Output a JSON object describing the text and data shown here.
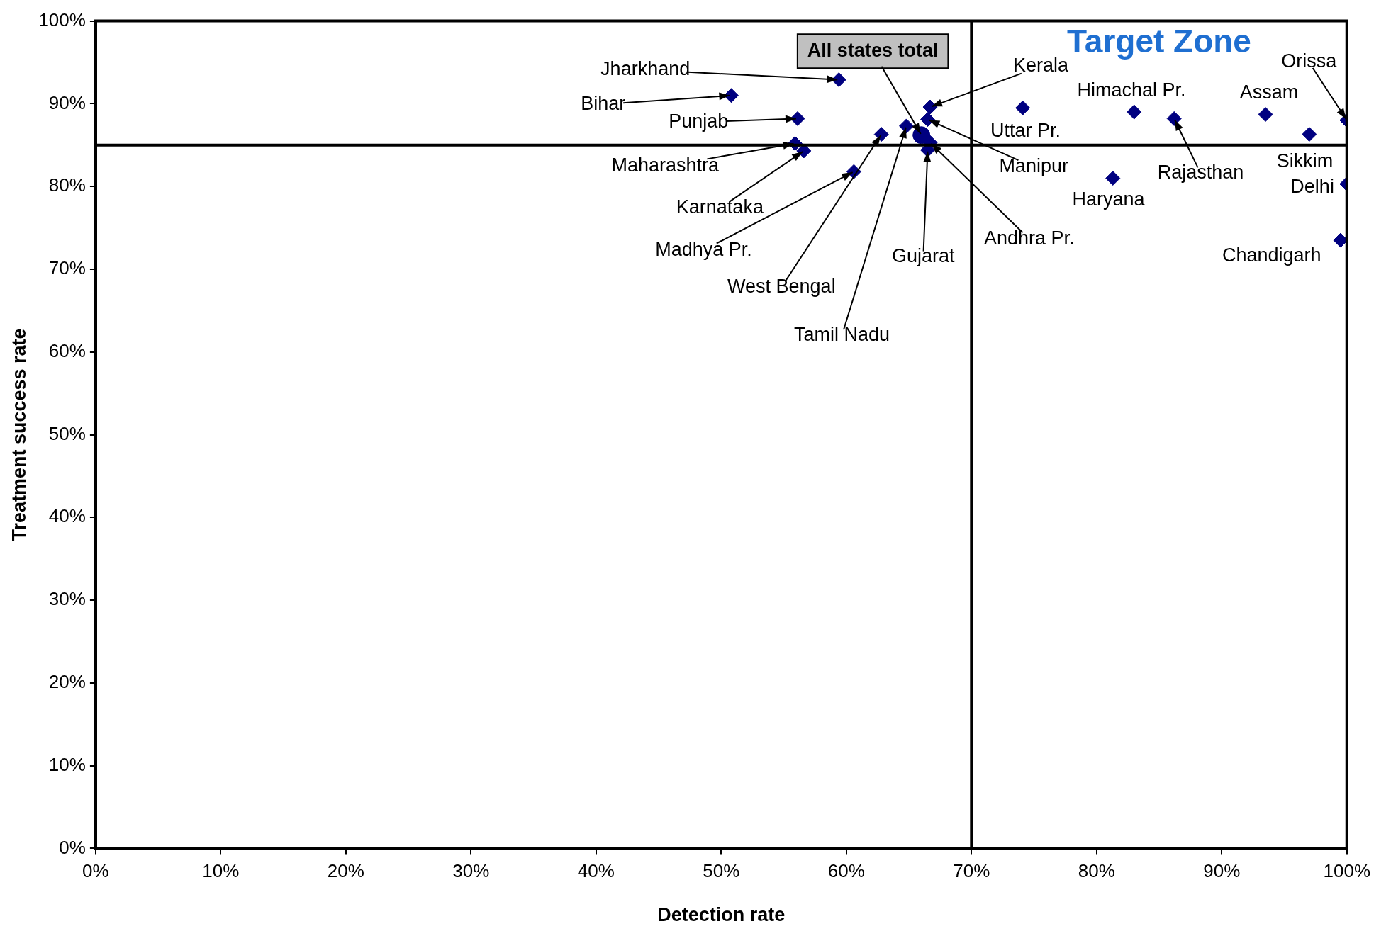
{
  "chart_data": {
    "type": "scatter",
    "xlabel": "Detection rate",
    "ylabel": "Treatment success rate",
    "xlim": [
      0,
      100
    ],
    "ylim": [
      0,
      100
    ],
    "xticks": [
      {
        "value": 0,
        "label": "0%"
      },
      {
        "value": 10,
        "label": "10%"
      },
      {
        "value": 20,
        "label": "20%"
      },
      {
        "value": 30,
        "label": "30%"
      },
      {
        "value": 40,
        "label": "40%"
      },
      {
        "value": 50,
        "label": "50%"
      },
      {
        "value": 60,
        "label": "60%"
      },
      {
        "value": 70,
        "label": "70%"
      },
      {
        "value": 80,
        "label": "80%"
      },
      {
        "value": 90,
        "label": "90%"
      },
      {
        "value": 100,
        "label": "100%"
      }
    ],
    "yticks": [
      {
        "value": 0,
        "label": "0%"
      },
      {
        "value": 10,
        "label": "10%"
      },
      {
        "value": 20,
        "label": "20%"
      },
      {
        "value": 30,
        "label": "30%"
      },
      {
        "value": 40,
        "label": "40%"
      },
      {
        "value": 50,
        "label": "50%"
      },
      {
        "value": 60,
        "label": "60%"
      },
      {
        "value": 70,
        "label": "70%"
      },
      {
        "value": 80,
        "label": "80%"
      },
      {
        "value": 90,
        "label": "90%"
      },
      {
        "value": 100,
        "label": "100%"
      }
    ],
    "grid": false,
    "legend": false,
    "series": [
      {
        "marker": "diamond",
        "color": "#000080",
        "x": [
          59.4,
          50.8,
          56.1,
          55.9,
          56.6,
          60.6,
          62.8,
          64.8,
          66.7,
          66.5,
          66.5,
          66.7,
          74.1,
          83.0,
          86.2,
          81.3,
          93.5,
          97.0,
          100,
          100,
          99.5
        ],
        "values": [
          92.9,
          91.0,
          88.2,
          85.2,
          84.3,
          81.8,
          86.3,
          87.3,
          89.6,
          88.1,
          84.4,
          85.3,
          89.5,
          89.0,
          88.2,
          81.0,
          88.7,
          86.3,
          88.0,
          80.3,
          73.5
        ]
      },
      {
        "marker": "circle",
        "color": "#000080",
        "x": [
          66.0
        ],
        "values": [
          86.2
        ]
      }
    ],
    "ref_lines": [
      {
        "axis": "x",
        "value": 70,
        "color": "#000000"
      },
      {
        "axis": "y",
        "value": 85,
        "color": "#000000"
      }
    ],
    "annotations": [
      {
        "text": "Jharkhand",
        "x": 59.4,
        "y": 92.9
      },
      {
        "text": "Bihar",
        "x": 50.8,
        "y": 91.0
      },
      {
        "text": "Punjab",
        "x": 56.1,
        "y": 88.2
      },
      {
        "text": "Maharashtra",
        "x": 55.9,
        "y": 85.2
      },
      {
        "text": "Karnataka",
        "x": 56.6,
        "y": 84.3
      },
      {
        "text": "Madhya Pr.",
        "x": 60.6,
        "y": 81.8
      },
      {
        "text": "West Bengal",
        "x": 62.8,
        "y": 86.3
      },
      {
        "text": "Tamil Nadu",
        "x": 64.8,
        "y": 87.3
      },
      {
        "text": "Kerala",
        "x": 66.7,
        "y": 89.6
      },
      {
        "text": "Manipur",
        "x": 66.5,
        "y": 88.1
      },
      {
        "text": "Gujarat",
        "x": 66.5,
        "y": 84.4
      },
      {
        "text": "Andhra Pr.",
        "x": 66.7,
        "y": 85.3
      },
      {
        "text": "Uttar Pr.",
        "x": 74.1,
        "y": 89.5
      },
      {
        "text": "Himachal Pr.",
        "x": 83.0,
        "y": 89.0
      },
      {
        "text": "Rajasthan",
        "x": 86.2,
        "y": 88.2
      },
      {
        "text": "Haryana",
        "x": 81.3,
        "y": 81.0
      },
      {
        "text": "Assam",
        "x": 93.5,
        "y": 88.7
      },
      {
        "text": "Sikkim",
        "x": 97.0,
        "y": 86.3
      },
      {
        "text": "Orissa",
        "x": 100,
        "y": 88.0
      },
      {
        "text": "Delhi",
        "x": 100,
        "y": 80.3
      },
      {
        "text": "Chandigarh",
        "x": 99.5,
        "y": 73.5
      },
      {
        "text": "All states total",
        "x": 66.0,
        "y": 86.2
      },
      "Target Zone"
    ]
  }
}
